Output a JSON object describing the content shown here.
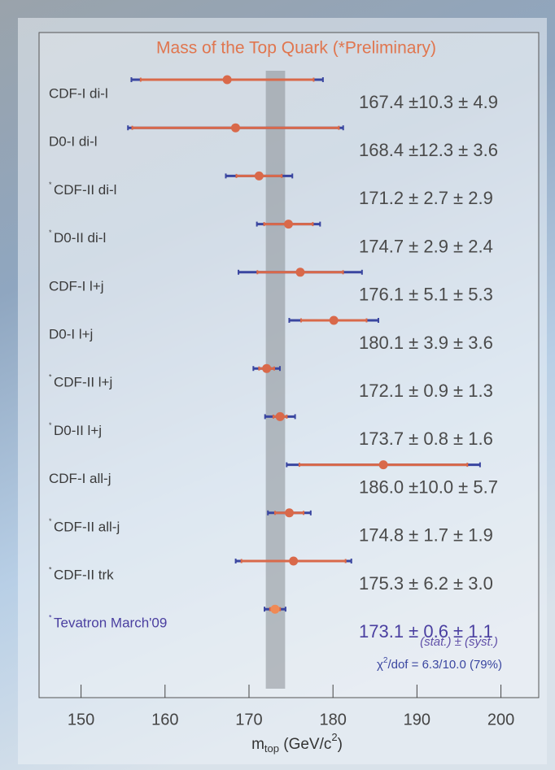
{
  "chart_data": {
    "type": "forest",
    "title": "Mass of the Top Quark (*Preliminary)",
    "x_label": {
      "main": "m",
      "sub": "top",
      "unit": " (GeV/c",
      "sup": "2",
      "end": ")"
    },
    "categories": [
      "CDF-I di-l",
      "D0-I di-l",
      "CDF-II di-l",
      "D0-II di-l",
      "CDF-I l+j",
      "D0-I l+j",
      "CDF-II l+j",
      "D0-II l+j",
      "CDF-I all-j",
      "CDF-II all-j",
      "CDF-II trk",
      "Tevatron March'09"
    ],
    "notes": [
      null,
      null,
      "*",
      "*",
      null,
      null,
      "*",
      "*",
      null,
      "*",
      "*",
      "*"
    ],
    "values": [
      167.4,
      168.4,
      171.2,
      174.7,
      176.1,
      180.1,
      172.1,
      173.7,
      186.0,
      174.8,
      175.3,
      173.1
    ],
    "stat": [
      10.3,
      12.3,
      2.7,
      2.9,
      5.1,
      3.9,
      0.9,
      0.8,
      10.0,
      1.7,
      6.2,
      0.6
    ],
    "syst": [
      4.9,
      3.6,
      2.9,
      2.4,
      5.3,
      3.6,
      1.3,
      1.6,
      5.7,
      1.9,
      3.0,
      1.1
    ],
    "value_labels": [
      "167.4 ±10.3 ± 4.9",
      "168.4 ±12.3 ± 3.6",
      "171.2 ± 2.7 ± 2.9",
      "174.7 ± 2.9 ± 2.4",
      "176.1 ± 5.1 ± 5.3",
      "180.1 ± 3.9 ± 3.6",
      "172.1 ± 0.9 ± 1.3",
      "173.7 ± 0.8 ± 1.6",
      "186.0 ±10.0 ± 5.7",
      "174.8 ± 1.7 ± 1.9",
      "175.3 ± 6.2 ± 3.0",
      "173.1 ± 0.6 ± 1.1"
    ],
    "error_legend": "(stat.) ±  (syst.)",
    "chi2": {
      "symbol": "χ",
      "sup": "2",
      "rest": "/dof = 6.3/10.0 (79%)"
    },
    "band": [
      172.0,
      174.3
    ],
    "xlim": [
      145,
      204.5
    ],
    "xticks": [
      150,
      160,
      170,
      180,
      190,
      200
    ],
    "point_color": "#d9694a",
    "combined_color": "#f08a55",
    "stat_color": "#d9694a",
    "total_color": "#3a46a0",
    "band_color": "#8a8f96"
  }
}
